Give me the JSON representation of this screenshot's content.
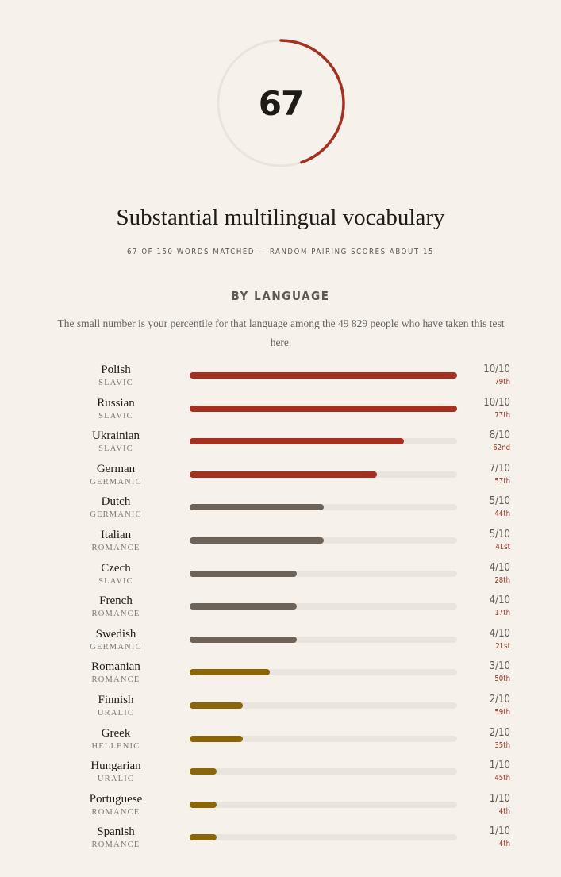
{
  "score": {
    "value": "67",
    "matched": 67,
    "total": 150,
    "ring_color": "#a5301f",
    "track_color": "#e9e4dd"
  },
  "headline": "Substantial multilingual vocabulary",
  "subline": "67 OF 150 WORDS MATCHED — RANDOM PAIRING SCORES ABOUT 15",
  "section": {
    "title": "BY LANGUAGE",
    "note": "The small number is your percentile for that language among the 49 829 people who have taken this test here."
  },
  "colors": {
    "high": "#a5301f",
    "mid": "#6e6359",
    "low": "#8b6508",
    "track": "#e9e4dd",
    "percentile": "#9d3322"
  },
  "languages": [
    {
      "name": "Polish",
      "family": "SLAVIC",
      "score": 10,
      "max": 10,
      "score_text": "10/10",
      "percentile": "79th",
      "tier": "high"
    },
    {
      "name": "Russian",
      "family": "SLAVIC",
      "score": 10,
      "max": 10,
      "score_text": "10/10",
      "percentile": "77th",
      "tier": "high"
    },
    {
      "name": "Ukrainian",
      "family": "SLAVIC",
      "score": 8,
      "max": 10,
      "score_text": "8/10",
      "percentile": "62nd",
      "tier": "high"
    },
    {
      "name": "German",
      "family": "GERMANIC",
      "score": 7,
      "max": 10,
      "score_text": "7/10",
      "percentile": "57th",
      "tier": "high"
    },
    {
      "name": "Dutch",
      "family": "GERMANIC",
      "score": 5,
      "max": 10,
      "score_text": "5/10",
      "percentile": "44th",
      "tier": "mid"
    },
    {
      "name": "Italian",
      "family": "ROMANCE",
      "score": 5,
      "max": 10,
      "score_text": "5/10",
      "percentile": "41st",
      "tier": "mid"
    },
    {
      "name": "Czech",
      "family": "SLAVIC",
      "score": 4,
      "max": 10,
      "score_text": "4/10",
      "percentile": "28th",
      "tier": "mid"
    },
    {
      "name": "French",
      "family": "ROMANCE",
      "score": 4,
      "max": 10,
      "score_text": "4/10",
      "percentile": "17th",
      "tier": "mid"
    },
    {
      "name": "Swedish",
      "family": "GERMANIC",
      "score": 4,
      "max": 10,
      "score_text": "4/10",
      "percentile": "21st",
      "tier": "mid"
    },
    {
      "name": "Romanian",
      "family": "ROMANCE",
      "score": 3,
      "max": 10,
      "score_text": "3/10",
      "percentile": "50th",
      "tier": "low"
    },
    {
      "name": "Finnish",
      "family": "URALIC",
      "score": 2,
      "max": 10,
      "score_text": "2/10",
      "percentile": "59th",
      "tier": "low"
    },
    {
      "name": "Greek",
      "family": "HELLENIC",
      "score": 2,
      "max": 10,
      "score_text": "2/10",
      "percentile": "35th",
      "tier": "low"
    },
    {
      "name": "Hungarian",
      "family": "URALIC",
      "score": 1,
      "max": 10,
      "score_text": "1/10",
      "percentile": "45th",
      "tier": "low"
    },
    {
      "name": "Portuguese",
      "family": "ROMANCE",
      "score": 1,
      "max": 10,
      "score_text": "1/10",
      "percentile": "4th",
      "tier": "low"
    },
    {
      "name": "Spanish",
      "family": "ROMANCE",
      "score": 1,
      "max": 10,
      "score_text": "1/10",
      "percentile": "4th",
      "tier": "low"
    }
  ]
}
